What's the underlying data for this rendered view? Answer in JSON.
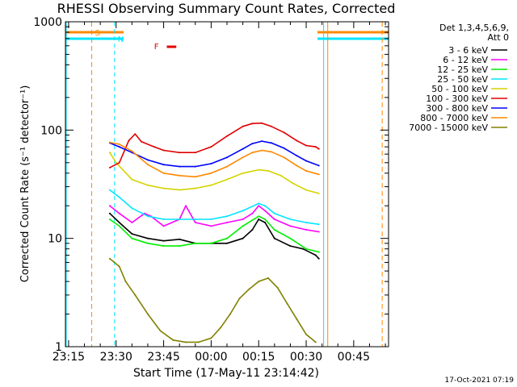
{
  "chart_data": {
    "type": "line",
    "title": "RHESSI Observing Summary Count Rates, Corrected",
    "xlabel": "Start Time (17-May-11 23:14:42)",
    "ylabel": "Corrected Count Rate (s⁻¹ detector⁻¹)",
    "y_scale": "log",
    "ylim": [
      1,
      1000
    ],
    "x_unit": "minutes since 23:15",
    "xlim": [
      -1,
      101
    ],
    "x_ticks": [
      {
        "pos": 0,
        "label": "23:15"
      },
      {
        "pos": 15,
        "label": "23:30"
      },
      {
        "pos": 30,
        "label": "23:45"
      },
      {
        "pos": 45,
        "label": "00:00"
      },
      {
        "pos": 60,
        "label": "00:15"
      },
      {
        "pos": 75,
        "label": "00:30"
      },
      {
        "pos": 90,
        "label": "00:45"
      }
    ],
    "y_ticks": [
      {
        "value": 1,
        "label": "1"
      },
      {
        "value": 10,
        "label": "10"
      },
      {
        "value": 100,
        "label": "100"
      },
      {
        "value": 1000,
        "label": "1000"
      }
    ],
    "legend_header": [
      "Det 1,3,4,5,6,9,",
      "Att 0"
    ],
    "legend_placement": "top-right",
    "footer_date": "17-Oct-2021 07:19",
    "flag_labels": [
      {
        "text": "S",
        "color": "#ff8800"
      },
      {
        "text": "N",
        "color": "#00e5ff"
      },
      {
        "text": "F",
        "color": "#e00000"
      }
    ],
    "series": [
      {
        "name": "3 - 6 keV",
        "color": "#000000",
        "points": [
          [
            13,
            17
          ],
          [
            16,
            14
          ],
          [
            20,
            11
          ],
          [
            25,
            10
          ],
          [
            30,
            9.5
          ],
          [
            35,
            9.8
          ],
          [
            40,
            9
          ],
          [
            45,
            9
          ],
          [
            50,
            9
          ],
          [
            55,
            10
          ],
          [
            58,
            12
          ],
          [
            60,
            15
          ],
          [
            62,
            14
          ],
          [
            65,
            10
          ],
          [
            70,
            8.5
          ],
          [
            74,
            8
          ],
          [
            78,
            7
          ],
          [
            79,
            6.5
          ]
        ]
      },
      {
        "name": "6 - 12 keV",
        "color": "#ff00ff",
        "points": [
          [
            13,
            20
          ],
          [
            16,
            17
          ],
          [
            20,
            14
          ],
          [
            24,
            17
          ],
          [
            26,
            16
          ],
          [
            30,
            13
          ],
          [
            35,
            15
          ],
          [
            37,
            20
          ],
          [
            40,
            14
          ],
          [
            45,
            13
          ],
          [
            50,
            14
          ],
          [
            55,
            15
          ],
          [
            58,
            17
          ],
          [
            60,
            20
          ],
          [
            62,
            18
          ],
          [
            65,
            15
          ],
          [
            70,
            13
          ],
          [
            75,
            12
          ],
          [
            79,
            11.5
          ]
        ]
      },
      {
        "name": "12 - 25 keV",
        "color": "#00ee00",
        "points": [
          [
            13,
            15
          ],
          [
            16,
            13
          ],
          [
            20,
            10
          ],
          [
            25,
            9
          ],
          [
            30,
            8.5
          ],
          [
            35,
            8.5
          ],
          [
            40,
            9
          ],
          [
            45,
            9
          ],
          [
            50,
            10
          ],
          [
            55,
            13
          ],
          [
            60,
            16
          ],
          [
            62,
            15
          ],
          [
            65,
            12
          ],
          [
            70,
            10
          ],
          [
            75,
            8
          ],
          [
            79,
            7.5
          ]
        ]
      },
      {
        "name": "25 - 50 keV",
        "color": "#00e5ff",
        "points": [
          [
            13,
            28
          ],
          [
            16,
            24
          ],
          [
            20,
            19
          ],
          [
            25,
            16
          ],
          [
            30,
            15
          ],
          [
            35,
            15
          ],
          [
            40,
            15
          ],
          [
            45,
            15
          ],
          [
            50,
            16
          ],
          [
            55,
            18
          ],
          [
            60,
            21
          ],
          [
            62,
            20
          ],
          [
            65,
            17
          ],
          [
            70,
            15
          ],
          [
            75,
            14
          ],
          [
            79,
            13.5
          ]
        ]
      },
      {
        "name": "50 - 100 keV",
        "color": "#d4d400",
        "points": [
          [
            13,
            62
          ],
          [
            15,
            50
          ],
          [
            20,
            35
          ],
          [
            25,
            31
          ],
          [
            30,
            29
          ],
          [
            35,
            28
          ],
          [
            40,
            29
          ],
          [
            45,
            31
          ],
          [
            50,
            35
          ],
          [
            55,
            40
          ],
          [
            60,
            43
          ],
          [
            63,
            42
          ],
          [
            67,
            38
          ],
          [
            71,
            32
          ],
          [
            75,
            28
          ],
          [
            79,
            26
          ]
        ]
      },
      {
        "name": "100 - 300 keV",
        "color": "#e00000",
        "points": [
          [
            13,
            45
          ],
          [
            16,
            50
          ],
          [
            19,
            80
          ],
          [
            21,
            92
          ],
          [
            23,
            78
          ],
          [
            27,
            70
          ],
          [
            30,
            65
          ],
          [
            35,
            62
          ],
          [
            40,
            62
          ],
          [
            45,
            70
          ],
          [
            50,
            88
          ],
          [
            55,
            108
          ],
          [
            58,
            115
          ],
          [
            61,
            116
          ],
          [
            64,
            108
          ],
          [
            68,
            95
          ],
          [
            72,
            80
          ],
          [
            75,
            72
          ],
          [
            78,
            70
          ],
          [
            79,
            67
          ]
        ]
      },
      {
        "name": "300 - 800 keV",
        "color": "#0000ff",
        "points": [
          [
            13,
            76
          ],
          [
            16,
            70
          ],
          [
            20,
            62
          ],
          [
            25,
            53
          ],
          [
            30,
            48
          ],
          [
            35,
            46
          ],
          [
            40,
            46
          ],
          [
            45,
            49
          ],
          [
            50,
            56
          ],
          [
            55,
            67
          ],
          [
            58,
            75
          ],
          [
            61,
            79
          ],
          [
            64,
            76
          ],
          [
            68,
            68
          ],
          [
            72,
            58
          ],
          [
            75,
            52
          ],
          [
            79,
            47
          ]
        ]
      },
      {
        "name": "800 - 7000 keV",
        "color": "#ff8800",
        "points": [
          [
            13,
            77
          ],
          [
            16,
            74
          ],
          [
            20,
            64
          ],
          [
            25,
            48
          ],
          [
            30,
            40
          ],
          [
            35,
            38
          ],
          [
            40,
            37
          ],
          [
            45,
            40
          ],
          [
            50,
            46
          ],
          [
            55,
            56
          ],
          [
            58,
            62
          ],
          [
            61,
            65
          ],
          [
            64,
            63
          ],
          [
            68,
            56
          ],
          [
            72,
            47
          ],
          [
            75,
            42
          ],
          [
            79,
            39
          ]
        ]
      },
      {
        "name": "7000 - 15000 keV",
        "color": "#808000",
        "points": [
          [
            13,
            6.5
          ],
          [
            16,
            5.5
          ],
          [
            18,
            4
          ],
          [
            21,
            3
          ],
          [
            25,
            2
          ],
          [
            29,
            1.4
          ],
          [
            33,
            1.15
          ],
          [
            37,
            1.1
          ],
          [
            41,
            1.1
          ],
          [
            45,
            1.2
          ],
          [
            48,
            1.5
          ],
          [
            51,
            2
          ],
          [
            54,
            2.8
          ],
          [
            57,
            3.4
          ],
          [
            60,
            4
          ],
          [
            63,
            4.3
          ],
          [
            66,
            3.5
          ],
          [
            69,
            2.5
          ],
          [
            72,
            1.8
          ],
          [
            75,
            1.3
          ],
          [
            78,
            1.1
          ]
        ]
      }
    ]
  }
}
